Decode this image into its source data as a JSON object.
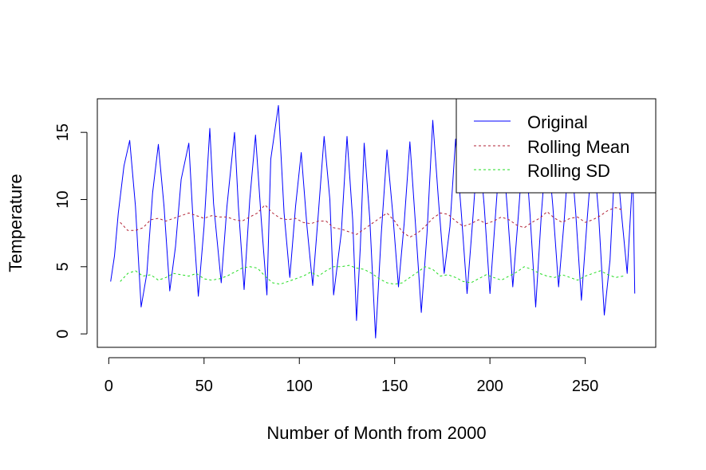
{
  "chart_data": {
    "type": "line",
    "title": "",
    "xlabel": "Number of Month from 2000",
    "ylabel": "Temperature",
    "xlim": [
      -6,
      287
    ],
    "ylim": [
      -1,
      17.5
    ],
    "xticks": [
      0,
      50,
      100,
      150,
      200,
      250
    ],
    "yticks": [
      0,
      5,
      10,
      15
    ],
    "grid": false,
    "legend_position": "top-right",
    "colors": {
      "original": "#0000ff",
      "rolling_mean": "#b22235",
      "rolling_sd": "#22dd22"
    },
    "series": [
      {
        "name": "Original",
        "style": "solid",
        "color": "#0000ff",
        "x": [
          1,
          3,
          5,
          8,
          11,
          14,
          17,
          20,
          23,
          26,
          29,
          32,
          35,
          38,
          42,
          44,
          47,
          50,
          53,
          55,
          59,
          62,
          66,
          68,
          71,
          74,
          77,
          80,
          83,
          85,
          89,
          92,
          95,
          98,
          101,
          104,
          107,
          110,
          113,
          116,
          118,
          122,
          125,
          128,
          130,
          132,
          134,
          137,
          140,
          143,
          146,
          149,
          152,
          155,
          158,
          161,
          164,
          167,
          170,
          173,
          176,
          179,
          182,
          185,
          188,
          191,
          194,
          197,
          200,
          203,
          206,
          209,
          212,
          215,
          218,
          221,
          224,
          227,
          230,
          233,
          236,
          239,
          242,
          245,
          248,
          251,
          254,
          257,
          260,
          263,
          266,
          269,
          272,
          275,
          276
        ],
        "y": [
          3.9,
          5.8,
          9.0,
          12.5,
          14.4,
          9.5,
          2.0,
          4.5,
          10.5,
          14.1,
          9.5,
          3.2,
          6.5,
          11.5,
          14.2,
          9.0,
          2.8,
          8.0,
          15.3,
          9.7,
          3.8,
          9.5,
          15.0,
          9.5,
          3.3,
          10.0,
          14.8,
          8.5,
          2.9,
          13.0,
          17.0,
          9.0,
          4.2,
          9.5,
          13.5,
          8.0,
          3.6,
          9.0,
          14.7,
          10.0,
          2.9,
          7.5,
          14.7,
          8.5,
          1.0,
          6.5,
          14.2,
          8.5,
          -0.3,
          7.5,
          13.7,
          9.0,
          3.5,
          8.2,
          14.3,
          8.0,
          1.6,
          7.5,
          15.9,
          10.0,
          4.5,
          8.0,
          14.5,
          9.0,
          3.0,
          8.5,
          14.5,
          9.5,
          3.0,
          9.0,
          15.0,
          9.5,
          3.5,
          9.0,
          15.0,
          9.0,
          2.0,
          9.0,
          14.5,
          9.5,
          3.5,
          8.5,
          14.5,
          9.0,
          2.5,
          8.5,
          14.0,
          9.0,
          1.4,
          5.5,
          14.0,
          9.0,
          4.5,
          12.0,
          3.0
        ]
      },
      {
        "name": "Rolling Mean",
        "style": "dashed",
        "color": "#b22235",
        "x": [
          6,
          10,
          14,
          18,
          22,
          26,
          30,
          34,
          38,
          42,
          46,
          50,
          54,
          58,
          62,
          66,
          70,
          74,
          78,
          82,
          86,
          90,
          94,
          98,
          102,
          106,
          110,
          114,
          118,
          122,
          126,
          130,
          134,
          138,
          142,
          146,
          150,
          154,
          158,
          162,
          166,
          170,
          174,
          178,
          182,
          186,
          190,
          194,
          198,
          202,
          206,
          210,
          214,
          218,
          222,
          226,
          230,
          234,
          238,
          242,
          246,
          250,
          254,
          258,
          262,
          266,
          270
        ],
        "y": [
          8.3,
          7.7,
          7.7,
          7.9,
          8.5,
          8.6,
          8.4,
          8.6,
          8.8,
          9.0,
          8.8,
          8.6,
          8.8,
          8.7,
          8.7,
          8.5,
          8.4,
          8.7,
          9.0,
          9.6,
          9.0,
          8.6,
          8.5,
          8.6,
          8.3,
          8.2,
          8.4,
          8.4,
          7.9,
          7.8,
          7.6,
          7.4,
          7.8,
          8.2,
          8.6,
          9.0,
          8.4,
          7.6,
          7.2,
          7.5,
          8.0,
          8.6,
          9.0,
          8.9,
          8.4,
          8.0,
          8.2,
          8.5,
          8.2,
          8.4,
          8.7,
          8.5,
          8.1,
          7.9,
          8.3,
          8.6,
          9.1,
          8.6,
          8.3,
          8.6,
          8.7,
          8.3,
          8.5,
          8.8,
          9.2,
          9.4,
          9.2
        ]
      },
      {
        "name": "Rolling SD",
        "style": "dashed",
        "color": "#22dd22",
        "x": [
          6,
          10,
          14,
          18,
          22,
          26,
          30,
          34,
          38,
          42,
          46,
          50,
          54,
          58,
          62,
          66,
          70,
          74,
          78,
          82,
          86,
          90,
          94,
          98,
          102,
          106,
          110,
          114,
          118,
          122,
          126,
          130,
          134,
          138,
          142,
          146,
          150,
          154,
          158,
          162,
          166,
          170,
          174,
          178,
          182,
          186,
          190,
          194,
          198,
          202,
          206,
          210,
          214,
          218,
          222,
          226,
          230,
          234,
          238,
          242,
          246,
          250,
          254,
          258,
          262,
          266,
          270
        ],
        "y": [
          3.9,
          4.5,
          4.7,
          4.3,
          4.4,
          4.0,
          4.2,
          4.5,
          4.4,
          4.3,
          4.5,
          4.1,
          4.0,
          4.1,
          4.3,
          4.6,
          4.9,
          5.0,
          4.9,
          4.3,
          3.8,
          3.7,
          3.9,
          4.1,
          4.3,
          4.6,
          4.3,
          4.7,
          5.0,
          5.0,
          5.1,
          4.9,
          4.8,
          4.5,
          4.1,
          3.8,
          3.7,
          3.8,
          4.2,
          4.6,
          5.0,
          4.8,
          4.3,
          4.4,
          4.2,
          3.9,
          3.8,
          4.1,
          4.4,
          4.2,
          4.0,
          4.3,
          4.6,
          5.0,
          4.8,
          4.5,
          4.3,
          4.2,
          4.4,
          4.2,
          4.0,
          4.3,
          4.5,
          4.7,
          4.4,
          4.2,
          4.3
        ]
      }
    ]
  }
}
